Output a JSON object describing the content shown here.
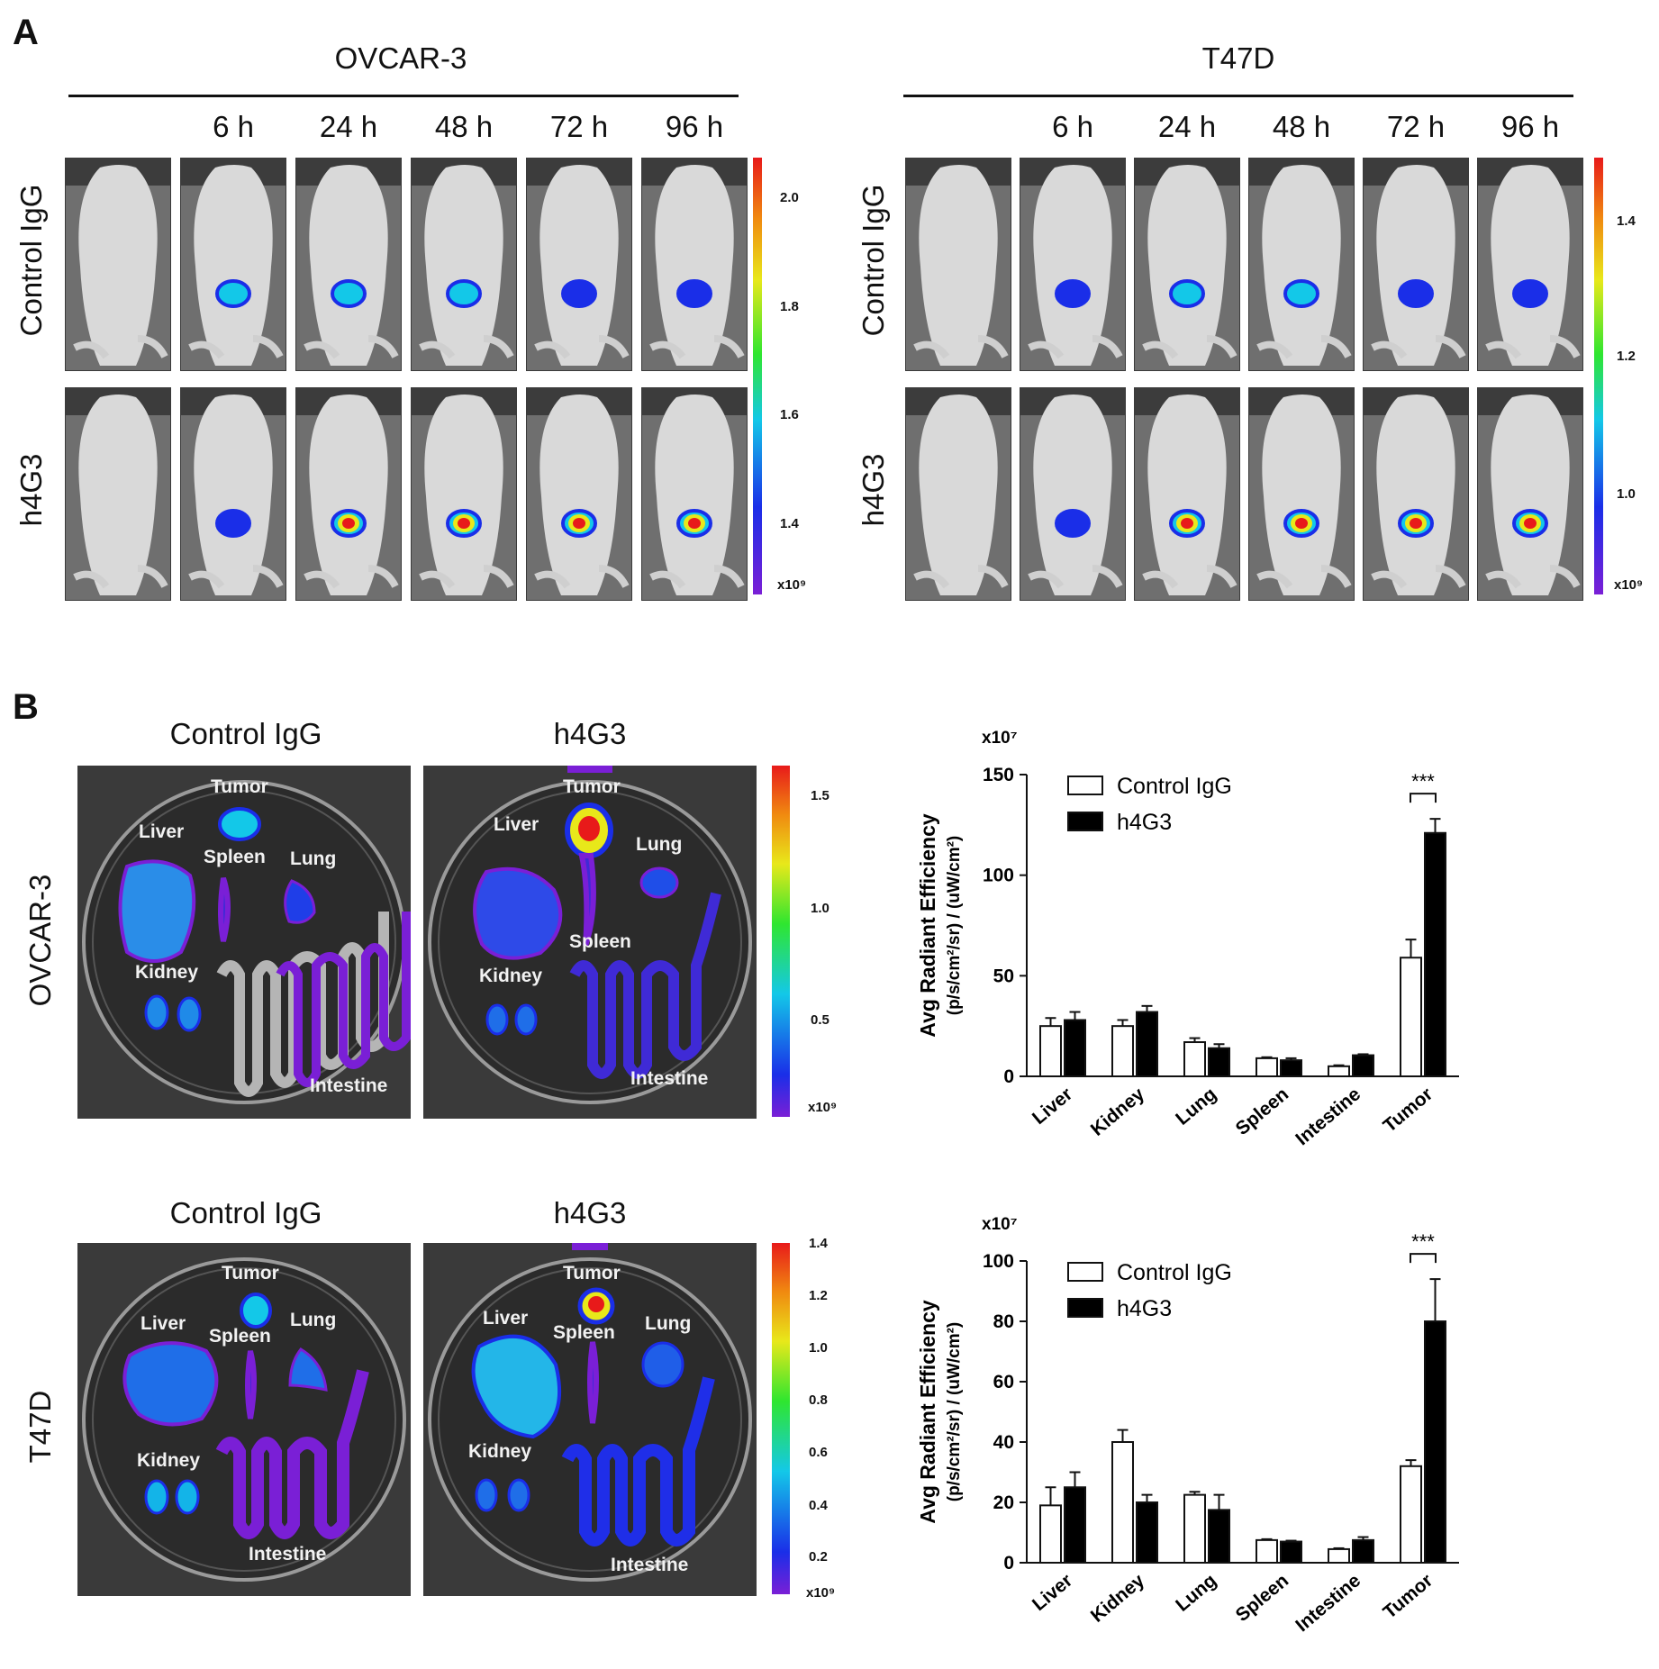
{
  "panel_a": {
    "letter": "A",
    "groups": [
      {
        "title": "OVCAR-3",
        "timepoints": [
          "6 h",
          "24 h",
          "48 h",
          "72 h",
          "96 h"
        ],
        "rows": [
          "Control  IgG",
          "h4G3"
        ],
        "colorbar": {
          "ticks": [
            "2.0",
            "1.8",
            "1.6",
            "1.4"
          ],
          "unit": "x10⁹"
        }
      },
      {
        "title": "T47D",
        "timepoints": [
          "6 h",
          "24 h",
          "48 h",
          "72 h",
          "96 h"
        ],
        "rows": [
          "Control  IgG",
          "h4G3"
        ],
        "colorbar": {
          "ticks": [
            "1.4",
            "1.2",
            "1.0"
          ],
          "unit": "x10⁹"
        }
      }
    ]
  },
  "panel_b": {
    "letter": "B",
    "blocks": [
      {
        "cell_line": "OVCAR-3",
        "plates": [
          {
            "title": "Control  IgG",
            "labels": [
              "Tumor",
              "Liver",
              "Spleen",
              "Lung",
              "Kidney",
              "Intestine"
            ]
          },
          {
            "title": "h4G3",
            "labels": [
              "Tumor",
              "Liver",
              "Lung",
              "Spleen",
              "Kidney",
              "Intestine"
            ]
          }
        ],
        "colorbar": {
          "ticks": [
            "1.5",
            "1.0",
            "0.5"
          ],
          "unit": "x10⁹"
        }
      },
      {
        "cell_line": "T47D",
        "plates": [
          {
            "title": "Control  IgG",
            "labels": [
              "Tumor",
              "Liver",
              "Spleen",
              "Lung",
              "Kidney",
              "Intestine"
            ]
          },
          {
            "title": "h4G3",
            "labels": [
              "Tumor",
              "Liver",
              "Spleen",
              "Lung",
              "Kidney",
              "Intestine"
            ]
          }
        ],
        "colorbar": {
          "ticks": [
            "1.4",
            "1.2",
            "1.0",
            "0.8",
            "0.6",
            "0.4",
            "0.2"
          ],
          "unit": "x10⁹"
        }
      }
    ]
  },
  "colors": {
    "scale": [
      "#7a1fd6",
      "#1a2ee8",
      "#13c8e8",
      "#2fe62f",
      "#e8e81a",
      "#f08a10",
      "#e81a1a"
    ],
    "control_bar": "#ffffff",
    "h4g3_bar": "#000000"
  },
  "chart_data": [
    {
      "type": "bar",
      "categories": [
        "Liver",
        "Kidney",
        "Lung",
        "Spleen",
        "Intestine",
        "Tumor"
      ],
      "series": [
        {
          "name": "Control IgG",
          "values": [
            25,
            25,
            17,
            9,
            5,
            59
          ],
          "errors": [
            4,
            3,
            2,
            0.5,
            0.5,
            9
          ]
        },
        {
          "name": "h4G3",
          "values": [
            28,
            32,
            14,
            8,
            10.5,
            121
          ],
          "errors": [
            4,
            3,
            2,
            1,
            0.5,
            7
          ]
        }
      ],
      "ylim": [
        0,
        150
      ],
      "yticks": [
        "0",
        "50",
        "100",
        "150"
      ],
      "multiplier": "x10⁷",
      "ylabel": "Avg Radiant Efficiency",
      "ylabel2": "(p/s/cm²/sr) / (uW/cm²)",
      "significance": "***",
      "legend_position": "top-left"
    },
    {
      "type": "bar",
      "categories": [
        "Liver",
        "Kidney",
        "Lung",
        "Spleen",
        "Intestine",
        "Tumor"
      ],
      "series": [
        {
          "name": "Control IgG",
          "values": [
            19,
            40,
            22.5,
            7.5,
            4.5,
            32
          ],
          "errors": [
            6,
            4,
            1,
            0.3,
            0.3,
            2
          ]
        },
        {
          "name": "h4G3",
          "values": [
            25,
            20,
            17.5,
            7,
            7.5,
            80
          ],
          "errors": [
            5,
            2.5,
            5,
            0.3,
            1,
            14
          ]
        }
      ],
      "ylim": [
        0,
        100
      ],
      "yticks": [
        "0",
        "20",
        "40",
        "60",
        "80",
        "100"
      ],
      "multiplier": "x10⁷",
      "ylabel": "Avg Radiant Efficiency",
      "ylabel2": "(p/s/cm²/sr) / (uW/cm²)",
      "significance": "***",
      "legend_position": "top-left"
    }
  ]
}
